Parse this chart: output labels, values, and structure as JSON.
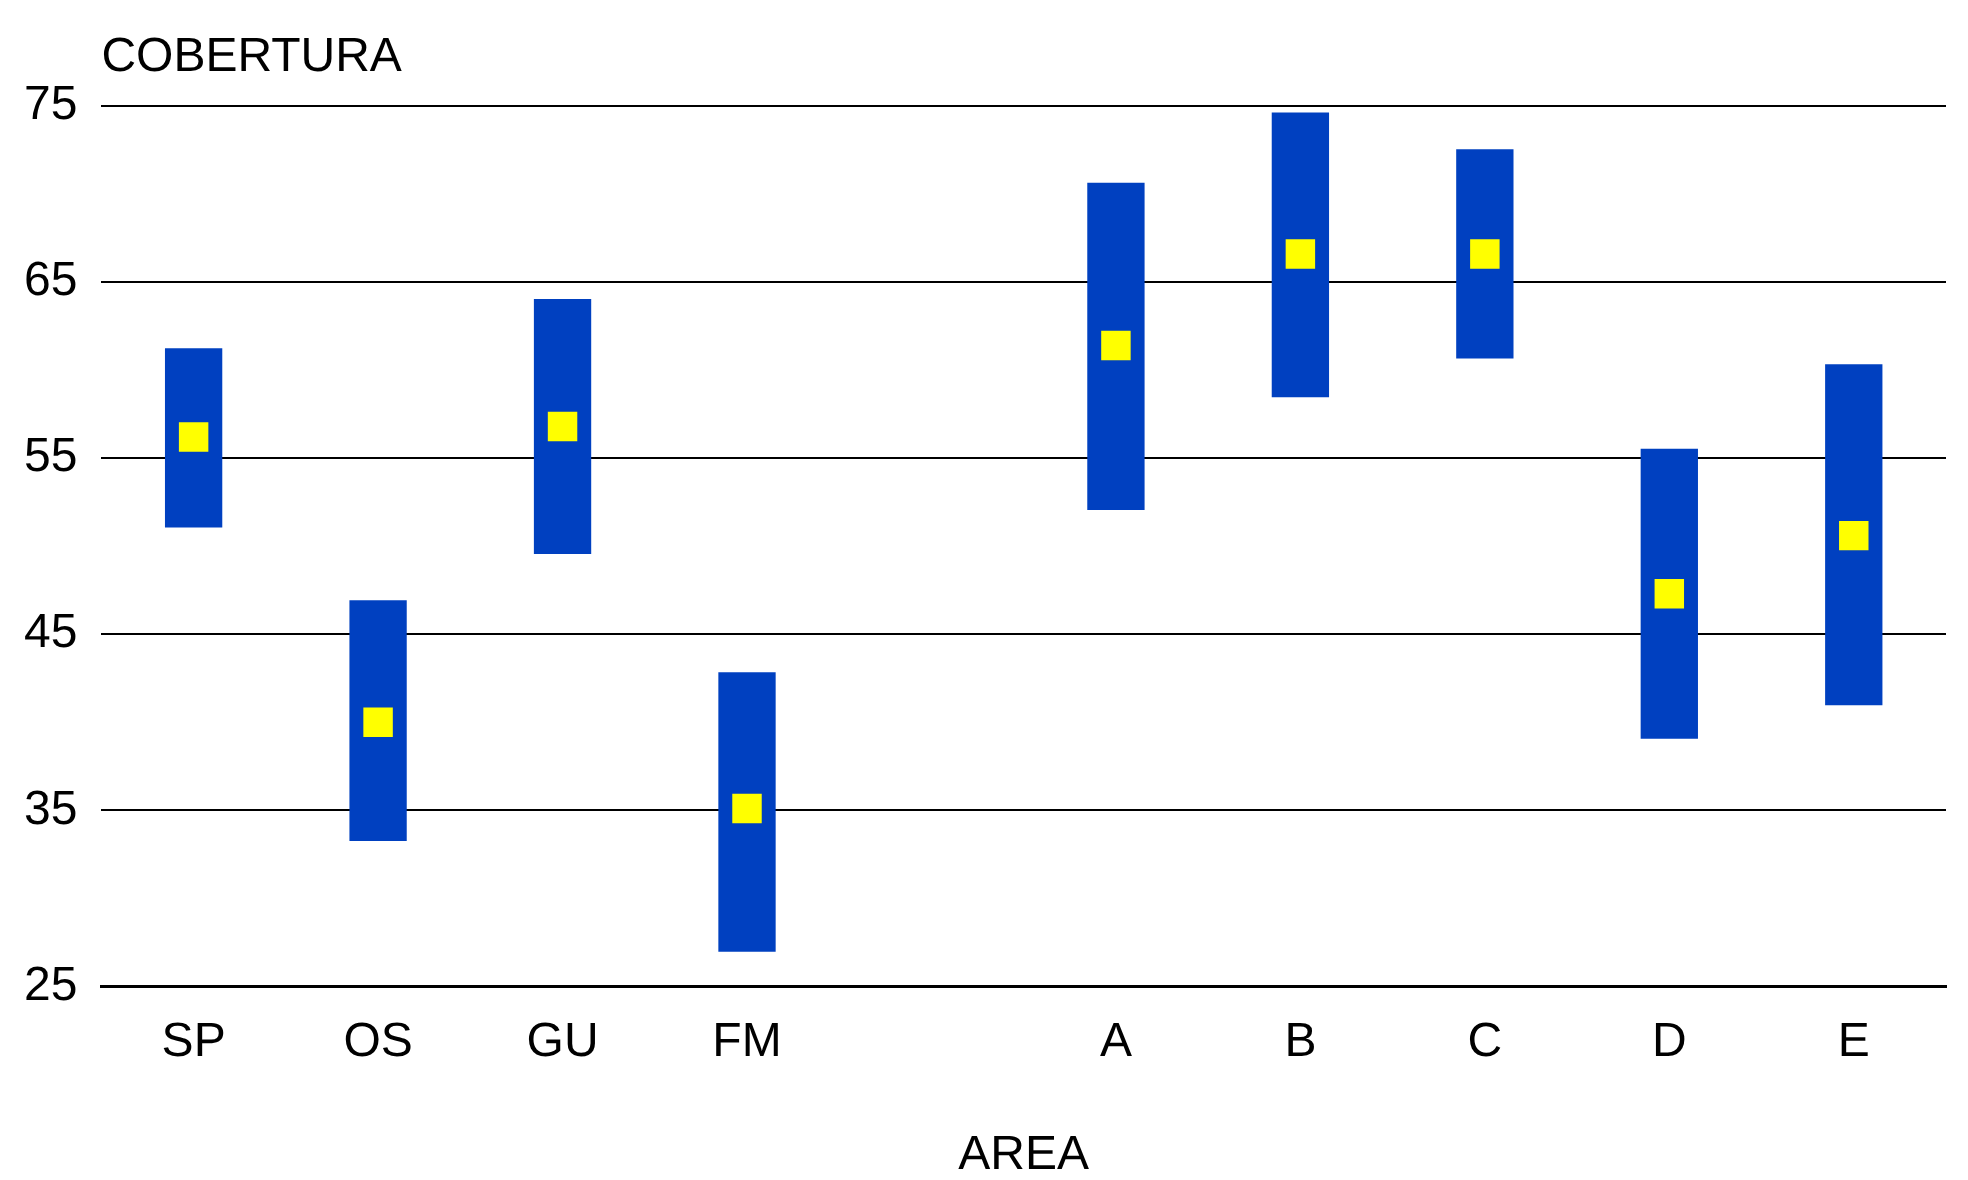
{
  "chart_data": {
    "ylabel": "COBERTURA",
    "xlabel": "AREA",
    "categories": [
      "SP",
      "OS",
      "GU",
      "FM",
      null,
      "A",
      "B",
      "C",
      "D",
      "E"
    ],
    "type": "bar",
    "ylim": [
      25,
      75
    ],
    "yticks": [
      25,
      35,
      45,
      55,
      65,
      75
    ],
    "grid": "y",
    "series": [
      {
        "color": "#0040c0",
        "base": [
          51.1,
          33.3,
          49.6,
          27.0,
          null,
          52.1,
          58.5,
          60.7,
          39.1,
          41.0
        ],
        "values": [
          10.1,
          13.6,
          14.4,
          15.8,
          null,
          18.5,
          16.1,
          11.8,
          16.4,
          19.3
        ]
      },
      {
        "type": "scatter",
        "marker": "square",
        "color": "#ffff00",
        "x": [
          "SP",
          "OS",
          "GU",
          "FM",
          "A",
          "B",
          "C",
          "D",
          "E"
        ],
        "values": [
          56.2,
          40.0,
          56.8,
          35.1,
          61.4,
          66.6,
          66.6,
          47.3,
          50.6
        ]
      }
    ]
  }
}
